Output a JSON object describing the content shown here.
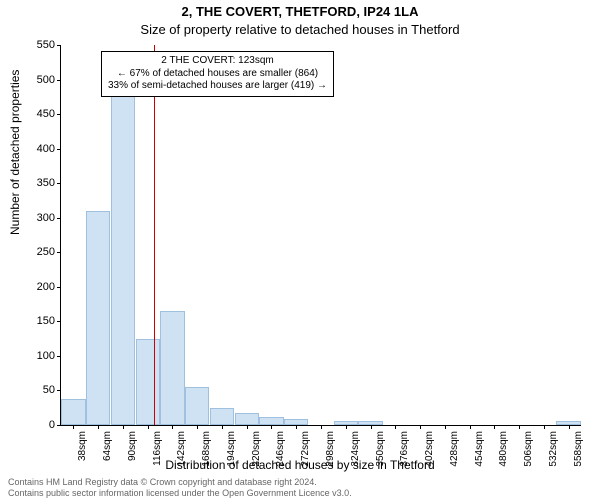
{
  "title_main": "2, THE COVERT, THETFORD, IP24 1LA",
  "title_sub": "Size of property relative to detached houses in Thetford",
  "ylabel": "Number of detached properties",
  "xlabel": "Distribution of detached houses by size in Thetford",
  "footer_line1": "Contains HM Land Registry data © Crown copyright and database right 2024.",
  "footer_line2": "Contains public sector information licensed under the Open Government Licence v3.0.",
  "chart": {
    "type": "histogram",
    "ylim": [
      0,
      550
    ],
    "ytick_step": 50,
    "bar_color": "#cfe2f3",
    "bar_border_color": "#a0c0e0",
    "background_color": "#ffffff",
    "reference_line_color": "#cc0000",
    "reference_line_position": 123,
    "x_categories": [
      "38sqm",
      "64sqm",
      "90sqm",
      "116sqm",
      "142sqm",
      "168sqm",
      "194sqm",
      "220sqm",
      "246sqm",
      "272sqm",
      "298sqm",
      "324sqm",
      "350sqm",
      "376sqm",
      "402sqm",
      "428sqm",
      "454sqm",
      "480sqm",
      "506sqm",
      "532sqm",
      "558sqm"
    ],
    "x_interval": 26,
    "values": [
      38,
      310,
      500,
      125,
      165,
      55,
      25,
      18,
      12,
      8,
      0,
      6,
      6,
      0,
      0,
      0,
      0,
      0,
      0,
      0,
      6
    ]
  },
  "annotation": {
    "line1": "2 THE COVERT: 123sqm",
    "line2": "← 67% of detached houses are smaller (864)",
    "line3": "33% of semi-detached houses are larger (419) →"
  }
}
